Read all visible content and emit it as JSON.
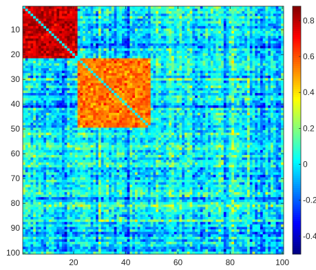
{
  "chart_data": {
    "type": "heatmap",
    "title": "",
    "xlabel": "",
    "ylabel": "",
    "rows": 100,
    "cols": 100,
    "xlim": [
      0.5,
      100.5
    ],
    "ylim": [
      0.5,
      100.5
    ],
    "y_axis_direction": "reversed (1 at top, 100 at bottom)",
    "x_ticks": [
      20,
      40,
      60,
      80,
      100
    ],
    "x_tick_labels": [
      "20",
      "40",
      "60",
      "80",
      "100"
    ],
    "y_ticks": [
      10,
      20,
      30,
      40,
      50,
      60,
      70,
      80,
      90,
      100
    ],
    "y_tick_labels": [
      "10",
      "20",
      "30",
      "40",
      "50",
      "60",
      "70",
      "80",
      "90",
      "100"
    ],
    "colormap": "jet",
    "clim": [
      -0.5,
      0.88
    ],
    "colorbar": {
      "position": "right",
      "ticks": [
        -0.4,
        -0.2,
        0,
        0.2,
        0.4,
        0.6,
        0.8
      ],
      "tick_labels": [
        "-0.4",
        "-0.2",
        "0",
        "0.2",
        "0.4",
        "0.6",
        "0.8"
      ]
    },
    "diagonal_value": 0,
    "blocks": [
      {
        "name": "block-1",
        "rows": [
          1,
          21
        ],
        "cols": [
          1,
          21
        ],
        "mean_value": 0.78
      },
      {
        "name": "block-2",
        "rows": [
          22,
          49
        ],
        "cols": [
          22,
          49
        ],
        "mean_value": 0.55
      }
    ],
    "background_mean_value": 0.0,
    "notes_on_values": "Symmetric correlation-like matrix; values estimated from colour"
  }
}
